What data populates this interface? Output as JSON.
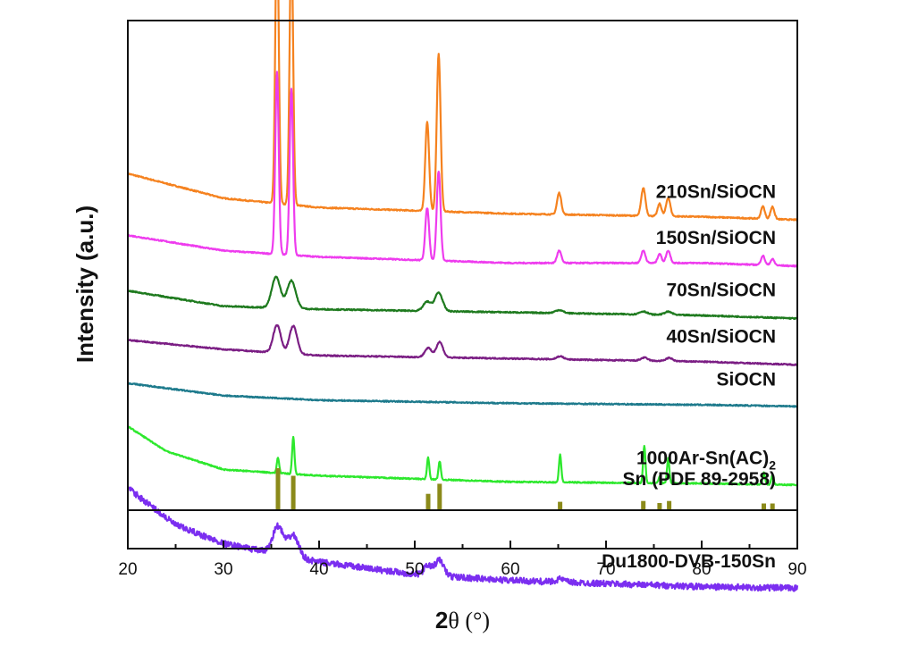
{
  "chart_data": {
    "type": "line",
    "xlabel": {
      "main": "2",
      "symbol": "θ",
      "unit": " (°)"
    },
    "ylabel": "Intensity (a.u.)",
    "xlim": [
      20,
      90
    ],
    "xticks": [
      "20",
      "30",
      "40",
      "50",
      "60",
      "70",
      "80",
      "90"
    ],
    "series": [
      {
        "name": "210Sn/SiOCN",
        "label_main": "210Sn/SiOCN",
        "label_sub": "",
        "color": "#f5821f",
        "noisy": false,
        "baseline": [
          [
            20,
            1.06
          ],
          [
            30,
            0.98
          ],
          [
            40,
            0.95
          ],
          [
            60,
            0.93
          ],
          [
            80,
            0.92
          ],
          [
            90,
            0.91
          ]
        ],
        "peaks": [
          {
            "x": 35.6,
            "h": 0.92,
            "w": 0.18
          },
          {
            "x": 37.1,
            "h": 0.88,
            "w": 0.18
          },
          {
            "x": 51.3,
            "h": 0.29,
            "w": 0.2
          },
          {
            "x": 52.5,
            "h": 0.51,
            "w": 0.2
          },
          {
            "x": 65.1,
            "h": 0.07,
            "w": 0.22
          },
          {
            "x": 73.9,
            "h": 0.09,
            "w": 0.22
          },
          {
            "x": 75.6,
            "h": 0.04,
            "w": 0.2
          },
          {
            "x": 76.5,
            "h": 0.06,
            "w": 0.22
          },
          {
            "x": 86.4,
            "h": 0.04,
            "w": 0.2
          },
          {
            "x": 87.4,
            "h": 0.04,
            "w": 0.2
          }
        ]
      },
      {
        "name": "150Sn/SiOCN",
        "label_main": "150Sn/SiOCN",
        "label_sub": "",
        "color": "#ee3cee",
        "noisy": false,
        "baseline": [
          [
            20,
            0.86
          ],
          [
            30,
            0.81
          ],
          [
            40,
            0.79
          ],
          [
            60,
            0.77
          ],
          [
            80,
            0.77
          ],
          [
            90,
            0.76
          ]
        ],
        "peaks": [
          {
            "x": 35.6,
            "h": 0.59,
            "w": 0.18
          },
          {
            "x": 37.1,
            "h": 0.54,
            "w": 0.18
          },
          {
            "x": 51.3,
            "h": 0.17,
            "w": 0.2
          },
          {
            "x": 52.5,
            "h": 0.29,
            "w": 0.2
          },
          {
            "x": 65.1,
            "h": 0.04,
            "w": 0.22
          },
          {
            "x": 73.9,
            "h": 0.04,
            "w": 0.22
          },
          {
            "x": 75.6,
            "h": 0.03,
            "w": 0.2
          },
          {
            "x": 76.5,
            "h": 0.04,
            "w": 0.22
          },
          {
            "x": 86.4,
            "h": 0.03,
            "w": 0.2
          },
          {
            "x": 87.4,
            "h": 0.02,
            "w": 0.2
          }
        ]
      },
      {
        "name": "70Sn/SiOCN",
        "label_main": "70Sn/SiOCN",
        "label_sub": "",
        "color": "#1e7a1e",
        "noisy": false,
        "baseline": [
          [
            20,
            0.68
          ],
          [
            30,
            0.63
          ],
          [
            40,
            0.62
          ],
          [
            60,
            0.61
          ],
          [
            80,
            0.6
          ],
          [
            90,
            0.59
          ]
        ],
        "peaks": [
          {
            "x": 35.5,
            "h": 0.1,
            "w": 0.45
          },
          {
            "x": 37.1,
            "h": 0.09,
            "w": 0.45
          },
          {
            "x": 51.3,
            "h": 0.03,
            "w": 0.4
          },
          {
            "x": 52.5,
            "h": 0.06,
            "w": 0.4
          },
          {
            "x": 65.1,
            "h": 0.01,
            "w": 0.4
          },
          {
            "x": 73.9,
            "h": 0.01,
            "w": 0.4
          },
          {
            "x": 76.5,
            "h": 0.01,
            "w": 0.4
          }
        ]
      },
      {
        "name": "40Sn/SiOCN",
        "label_main": "40Sn/SiOCN",
        "label_sub": "",
        "color": "#7b1e84",
        "noisy": false,
        "baseline": [
          [
            20,
            0.52
          ],
          [
            30,
            0.49
          ],
          [
            40,
            0.47
          ],
          [
            60,
            0.46
          ],
          [
            80,
            0.45
          ],
          [
            90,
            0.44
          ]
        ],
        "peaks": [
          {
            "x": 35.6,
            "h": 0.09,
            "w": 0.4
          },
          {
            "x": 37.3,
            "h": 0.09,
            "w": 0.4
          },
          {
            "x": 51.4,
            "h": 0.03,
            "w": 0.35
          },
          {
            "x": 52.6,
            "h": 0.05,
            "w": 0.35
          },
          {
            "x": 65.2,
            "h": 0.01,
            "w": 0.35
          },
          {
            "x": 74.0,
            "h": 0.01,
            "w": 0.35
          },
          {
            "x": 76.6,
            "h": 0.01,
            "w": 0.35
          }
        ]
      },
      {
        "name": "SiOCN",
        "label_main": "SiOCN",
        "label_sub": "",
        "color": "#1d7a8c",
        "noisy": false,
        "baseline": [
          [
            20,
            0.38
          ],
          [
            30,
            0.34
          ],
          [
            40,
            0.325
          ],
          [
            60,
            0.315
          ],
          [
            80,
            0.31
          ],
          [
            90,
            0.305
          ]
        ],
        "peaks": []
      },
      {
        "name": "1000Ar-Sn(AC)2",
        "label_main": "1000Ar-Sn(AC)",
        "label_sub": "2",
        "color": "#2de82d",
        "noisy": false,
        "baseline": [
          [
            20,
            0.24
          ],
          [
            24,
            0.16
          ],
          [
            30,
            0.1
          ],
          [
            40,
            0.08
          ],
          [
            60,
            0.06
          ],
          [
            80,
            0.055
          ],
          [
            90,
            0.05
          ]
        ],
        "peaks": [
          {
            "x": 35.7,
            "h": 0.05,
            "w": 0.12
          },
          {
            "x": 37.3,
            "h": 0.12,
            "w": 0.12
          },
          {
            "x": 51.4,
            "h": 0.07,
            "w": 0.12
          },
          {
            "x": 52.6,
            "h": 0.06,
            "w": 0.12
          },
          {
            "x": 65.2,
            "h": 0.09,
            "w": 0.12
          },
          {
            "x": 74.0,
            "h": 0.12,
            "w": 0.12
          },
          {
            "x": 75.6,
            "h": 0.02,
            "w": 0.12
          },
          {
            "x": 76.5,
            "h": 0.08,
            "w": 0.12
          },
          {
            "x": 86.5,
            "h": 0.04,
            "w": 0.12
          },
          {
            "x": 87.4,
            "h": 0.03,
            "w": 0.12
          }
        ]
      },
      {
        "name": "Du1800-DVB-150Sn",
        "label_main": "Du1800-DVB-150Sn",
        "label_sub": "",
        "color": "#7b2ef0",
        "noisy": true,
        "baseline": [
          [
            20,
            0.04
          ],
          [
            25,
            -0.08
          ],
          [
            30,
            -0.14
          ],
          [
            35,
            -0.17
          ],
          [
            40,
            -0.2
          ],
          [
            50,
            -0.24
          ],
          [
            60,
            -0.26
          ],
          [
            70,
            -0.27
          ],
          [
            80,
            -0.28
          ],
          [
            90,
            -0.285
          ]
        ],
        "peaks": [
          {
            "x": 35.7,
            "h": 0.09,
            "w": 0.55
          },
          {
            "x": 37.3,
            "h": 0.07,
            "w": 0.55
          },
          {
            "x": 51.4,
            "h": 0.03,
            "w": 0.45
          },
          {
            "x": 52.6,
            "h": 0.05,
            "w": 0.45
          },
          {
            "x": 65.2,
            "h": 0.01,
            "w": 0.45
          }
        ]
      }
    ],
    "reference": {
      "name": "Sn (PDF 89-2958)",
      "color": "#8b8a1a",
      "sticks": [
        {
          "x": 35.7,
          "h": 1.0
        },
        {
          "x": 37.3,
          "h": 0.82
        },
        {
          "x": 51.4,
          "h": 0.39
        },
        {
          "x": 52.6,
          "h": 0.63
        },
        {
          "x": 65.2,
          "h": 0.2
        },
        {
          "x": 73.9,
          "h": 0.22
        },
        {
          "x": 75.6,
          "h": 0.17
        },
        {
          "x": 76.6,
          "h": 0.22
        },
        {
          "x": 86.5,
          "h": 0.16
        },
        {
          "x": 87.4,
          "h": 0.16
        }
      ]
    }
  }
}
